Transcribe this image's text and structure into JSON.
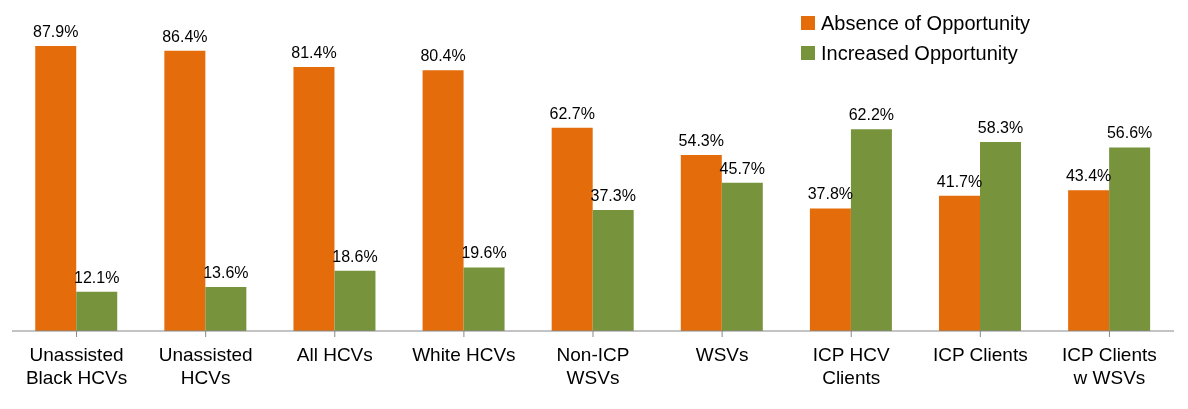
{
  "chart_data": {
    "type": "bar",
    "categories": [
      "Unassisted Black HCVs",
      "Unassisted HCVs",
      "All HCVs",
      "White HCVs",
      "Non-ICP WSVs",
      "WSVs",
      "ICP HCV Clients",
      "ICP Clients",
      "ICP Clients w WSVs"
    ],
    "series": [
      {
        "name": "Absence of Opportunity",
        "color": "#e46c0a",
        "values": [
          87.9,
          86.4,
          81.4,
          80.4,
          62.7,
          54.3,
          37.8,
          41.7,
          43.4
        ],
        "value_labels": [
          "87.9%",
          "86.4%",
          "81.4%",
          "80.4%",
          "62.7%",
          "54.3%",
          "37.8%",
          "41.7%",
          "43.4%"
        ]
      },
      {
        "name": "Increased Opportunity",
        "color": "#77933c",
        "values": [
          12.1,
          13.6,
          18.6,
          19.6,
          37.3,
          45.7,
          62.2,
          58.3,
          56.6
        ],
        "value_labels": [
          "12.1%",
          "13.6%",
          "18.6%",
          "19.6%",
          "37.3%",
          "45.7%",
          "62.2%",
          "58.3%",
          "56.6%"
        ]
      }
    ],
    "legend": "top right",
    "grid": false
  }
}
